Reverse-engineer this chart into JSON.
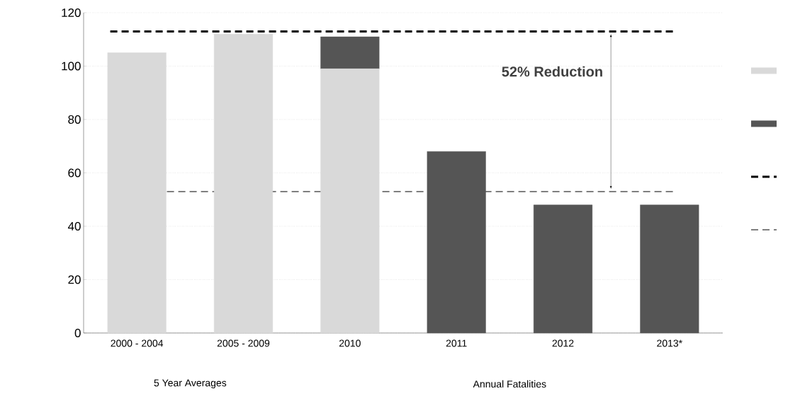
{
  "chart_data": {
    "type": "bar",
    "stacked": true,
    "categories": [
      "2000 - 2004",
      "2005 - 2009",
      "2010",
      "2011",
      "2012",
      "2013*"
    ],
    "series": [
      {
        "color": "#d9d9d9",
        "values": [
          105,
          112,
          99,
          null,
          null,
          null
        ]
      },
      {
        "color": "#555555",
        "values": [
          null,
          null,
          12,
          68,
          48,
          48
        ]
      }
    ],
    "ylim": [
      0,
      120
    ],
    "yticks": [
      0,
      20,
      40,
      60,
      80,
      100,
      120
    ],
    "grid": "y",
    "ref_lines": [
      {
        "axis": "y",
        "value": 113,
        "color": "#000000",
        "line_style": "dashed"
      },
      {
        "axis": "y",
        "value": 53,
        "color": "#7f7f7f",
        "line_style": "dashed"
      }
    ],
    "annotations": [
      "52% Reduction",
      "5 Year Averages",
      "Annual Fatalities"
    ]
  }
}
